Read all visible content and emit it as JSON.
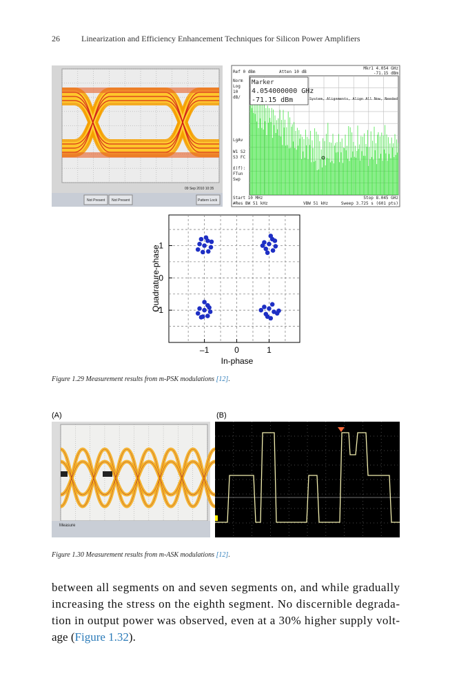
{
  "header": {
    "page_number": "26",
    "title": "Linearization and Efficiency Enhancement Techniques for Silicon Power Amplifiers"
  },
  "figure_1_29": {
    "eye_texts": [
      "09 Sep 2010  10:35",
      "Not Present",
      "Not Present",
      "Pattern Lock"
    ],
    "spectrum_texts": {
      "ref": "Ref 0 dBm",
      "atten": "Atten 10 dB",
      "mkr": "Mkr1  4.054 GHz",
      "mkr_value": "-71.15 dBm",
      "left": [
        "Norm",
        "Log",
        "10",
        "dB/",
        "LgAv",
        "W1  S2",
        "S3  FC",
        "£(f):",
        "FTun",
        "Swp"
      ],
      "marker_title": "Marker",
      "marker_freq": "4.054000000 GHz",
      "marker_level": "-71.15 dBm",
      "message": "System, Alignments, Align All Now, Needed",
      "start": "Start 10 MHz",
      "stop": "Stop 8.045 GHz",
      "rbw": "#Res BW 51 kHz",
      "vbw": "VBW 51 kHz",
      "sweep": "Sweep 3.725 s (601 pts)"
    },
    "caption": {
      "text": "Figure 1.29 Measurement results from m-PSK modulations",
      "ref": "[12]",
      "end": "."
    }
  },
  "chart_data": {
    "type": "scatter",
    "xlabel": "In-phase",
    "ylabel": "Quadrature-phase",
    "color": "#1e2fc4",
    "xlim": [
      -2.1,
      1.95
    ],
    "ylim": [
      -2,
      1.95
    ],
    "xticks": [
      {
        "value": -1,
        "label": "–1"
      },
      0,
      1
    ],
    "yticks": [
      {
        "value": -1,
        "label": "–1"
      },
      0,
      1
    ],
    "xminor": [
      -1.5,
      -0.5,
      0.5,
      1.5
    ],
    "yminor": [
      -1.5,
      -0.5,
      0.5,
      1.5
    ],
    "grid": true,
    "x": [
      -1,
      -0.9,
      -1.15,
      -0.8,
      -1.05,
      -0.88,
      -1.2,
      -0.95,
      -1.1,
      -0.78,
      1,
      1.1,
      0.85,
      1.2,
      0.95,
      1.12,
      0.8,
      1.05,
      0.9,
      1.18,
      -1,
      -0.9,
      -1.15,
      -0.82,
      -1.05,
      -0.9,
      -1.2,
      -1.0,
      -1.1,
      -0.85,
      1,
      1.15,
      0.85,
      1.25,
      0.95,
      1.1,
      0.75,
      1.05,
      0.9,
      1.3
    ],
    "y": [
      1,
      1.15,
      1.05,
      0.95,
      0.8,
      0.82,
      0.88,
      1.25,
      1.2,
      1.12,
      1.05,
      1.2,
      1.1,
      0.98,
      0.78,
      0.85,
      1.0,
      1.3,
      0.9,
      1.15,
      -1,
      -0.85,
      -0.95,
      -1.05,
      -1.2,
      -1.18,
      -1.1,
      -0.75,
      -1.22,
      -0.92,
      -0.95,
      -1.05,
      -0.9,
      -1.1,
      -1.2,
      -0.82,
      -1.0,
      -1.25,
      -1.12,
      -1.02
    ]
  },
  "figure_1_30": {
    "panel_a": "(A)",
    "panel_b": "(B)",
    "measure": "Measure",
    "caption": {
      "text": "Figure 1.30 Measurement results from m-ASK modulations",
      "ref": "[12]",
      "end": "."
    }
  },
  "body": {
    "lines": [
      "between all segments on and seven segments on, and while gradually",
      "increasing the stress on the eighth segment. No discernible degrada-",
      "tion in output power was observed, even at a 30% higher supply volt-"
    ],
    "last": {
      "before": "age (",
      "link": "Figure 1.32",
      "after": ")."
    }
  }
}
